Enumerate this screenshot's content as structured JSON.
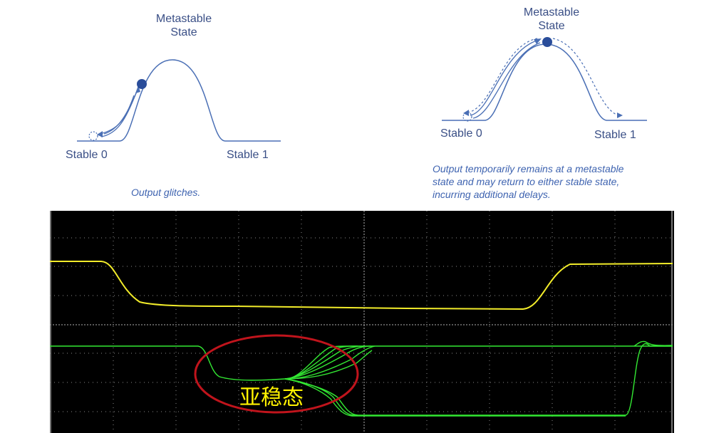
{
  "left_diagram": {
    "title": "Metastable\nState",
    "title_line1": "Metastable",
    "title_line2": "State",
    "label_left": "Stable 0",
    "label_right": "Stable 1",
    "caption": "Output glitches."
  },
  "right_diagram": {
    "title_line1": "Metastable",
    "title_line2": "State",
    "label_left": "Stable 0",
    "label_right": "Stable 1",
    "caption_line1": "Output temporarily remains at a metastable",
    "caption_line2": "state and may return to either stable state,",
    "caption_line3": "incurring additional delays."
  },
  "oscilloscope": {
    "annotation": "亚稳态",
    "trace_colors": {
      "clock": "#f2ec2a",
      "data": "#33e833",
      "ellipse": "#c0141c",
      "grid": "#8a8a8a"
    }
  },
  "colors": {
    "diagram_line": "#4a6fb5",
    "ball": "#2a4d9a",
    "label": "#3a4f86",
    "caption": "#3e63b0"
  }
}
